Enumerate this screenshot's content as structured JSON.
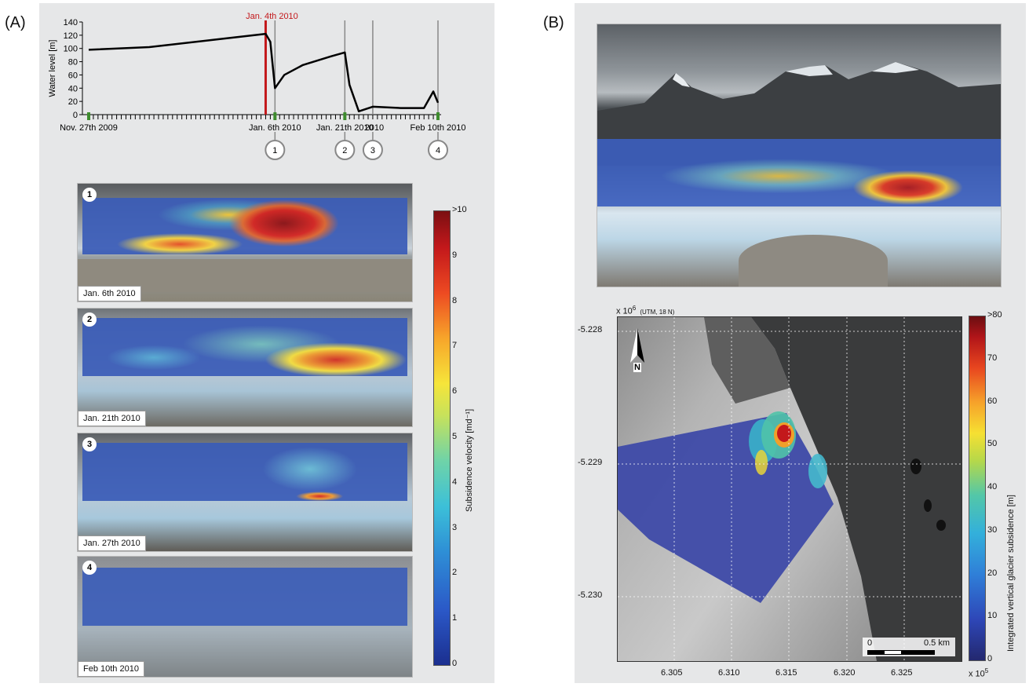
{
  "panel_a": {
    "letter": "(A)",
    "chart": {
      "title_annotation": "Jan. 4th 2010",
      "ylabel": "Water level [m]",
      "yticks": [
        "0",
        "20",
        "40",
        "60",
        "80",
        "100",
        "120",
        "140"
      ],
      "xlabels": [
        "Nov. 27th 2009",
        "Jan. 6th 2010",
        "Jan. 21th 2010",
        "Feb 10th 2010"
      ],
      "extra_xlabel": "2010",
      "markers": [
        "1",
        "2",
        "3",
        "4"
      ]
    },
    "photos": [
      {
        "num": "1",
        "date": "Jan. 6th 2010"
      },
      {
        "num": "2",
        "date": "Jan. 21th 2010"
      },
      {
        "num": "3",
        "date": "Jan. 27th 2010"
      },
      {
        "num": "4",
        "date": "Feb 10th 2010"
      }
    ],
    "colorbar": {
      "title": "Subsidence velocity [md⁻¹]",
      "ticks": [
        ">10",
        "9",
        "8",
        "7",
        "6",
        "5",
        "4",
        "3",
        "2",
        "1",
        "0"
      ]
    }
  },
  "panel_b": {
    "letter": "(B)",
    "map": {
      "y_multiplier": "x 10",
      "y_exp": "6",
      "crs": "(UTM, 18 N)",
      "yticks": [
        "-5.228",
        "-5.229",
        "-5.230"
      ],
      "xticks": [
        "6.305",
        "6.310",
        "6.315",
        "6.320",
        "6.325"
      ],
      "x_multiplier": "x 10",
      "x_exp": "5",
      "north": "N",
      "scalebar_left": "0",
      "scalebar_right": "0.5 km"
    },
    "colorbar": {
      "title": "Integrated vertical glacier subsidence [m]",
      "ticks": [
        ">80",
        "70",
        "60",
        "50",
        "40",
        "30",
        "20",
        "10",
        "0"
      ]
    }
  },
  "chart_data": {
    "type": "line",
    "title": "",
    "xlabel": "",
    "ylabel": "Water level [m]",
    "ylim": [
      0,
      140
    ],
    "x": [
      "2009-11-27",
      "2009-12-10",
      "2009-12-25",
      "2010-01-04",
      "2010-01-05",
      "2010-01-06",
      "2010-01-08",
      "2010-01-12",
      "2010-01-18",
      "2010-01-21",
      "2010-01-22",
      "2010-01-24",
      "2010-01-27",
      "2010-02-02",
      "2010-02-07",
      "2010-02-09",
      "2010-02-10"
    ],
    "values": [
      98,
      102,
      114,
      122,
      110,
      40,
      60,
      75,
      88,
      94,
      45,
      5,
      12,
      10,
      10,
      35,
      18
    ],
    "series": [
      {
        "name": "",
        "values": [
          98,
          102,
          114,
          122,
          110,
          40,
          60,
          75,
          88,
          94,
          45,
          5,
          12,
          10,
          10,
          35,
          18
        ]
      }
    ]
  }
}
